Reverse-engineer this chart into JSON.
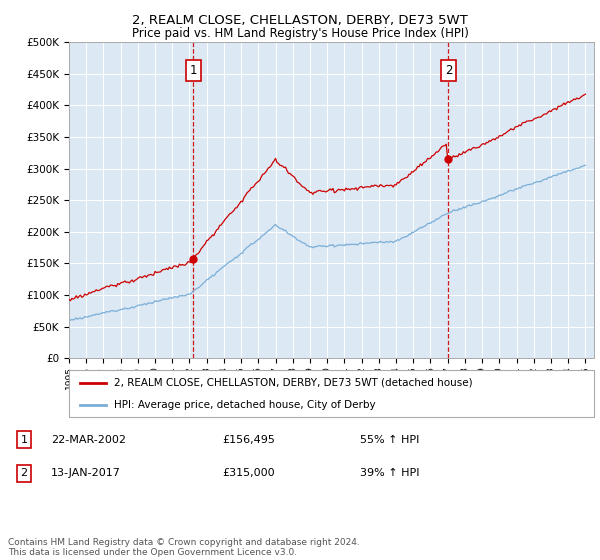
{
  "title": "2, REALM CLOSE, CHELLASTON, DERBY, DE73 5WT",
  "subtitle": "Price paid vs. HM Land Registry's House Price Index (HPI)",
  "bg_color": "#dce9f5",
  "grid_color": "white",
  "red_color": "#cc0000",
  "blue_color": "#7aaed6",
  "legend_label_red": "2, REALM CLOSE, CHELLASTON, DERBY, DE73 5WT (detached house)",
  "legend_label_blue": "HPI: Average price, detached house, City of Derby",
  "sale1_year": 2002.22,
  "sale1_price": 156495,
  "sale2_year": 2017.04,
  "sale2_price": 315000,
  "ann1_date": "22-MAR-2002",
  "ann1_price": "£156,495",
  "ann1_hpi": "55% ↑ HPI",
  "ann2_date": "13-JAN-2017",
  "ann2_price": "£315,000",
  "ann2_hpi": "39% ↑ HPI",
  "footer": "Contains HM Land Registry data © Crown copyright and database right 2024.\nThis data is licensed under the Open Government Licence v3.0.",
  "xmin": 1995,
  "xmax": 2025.5,
  "ymin": 0,
  "ymax": 500000
}
